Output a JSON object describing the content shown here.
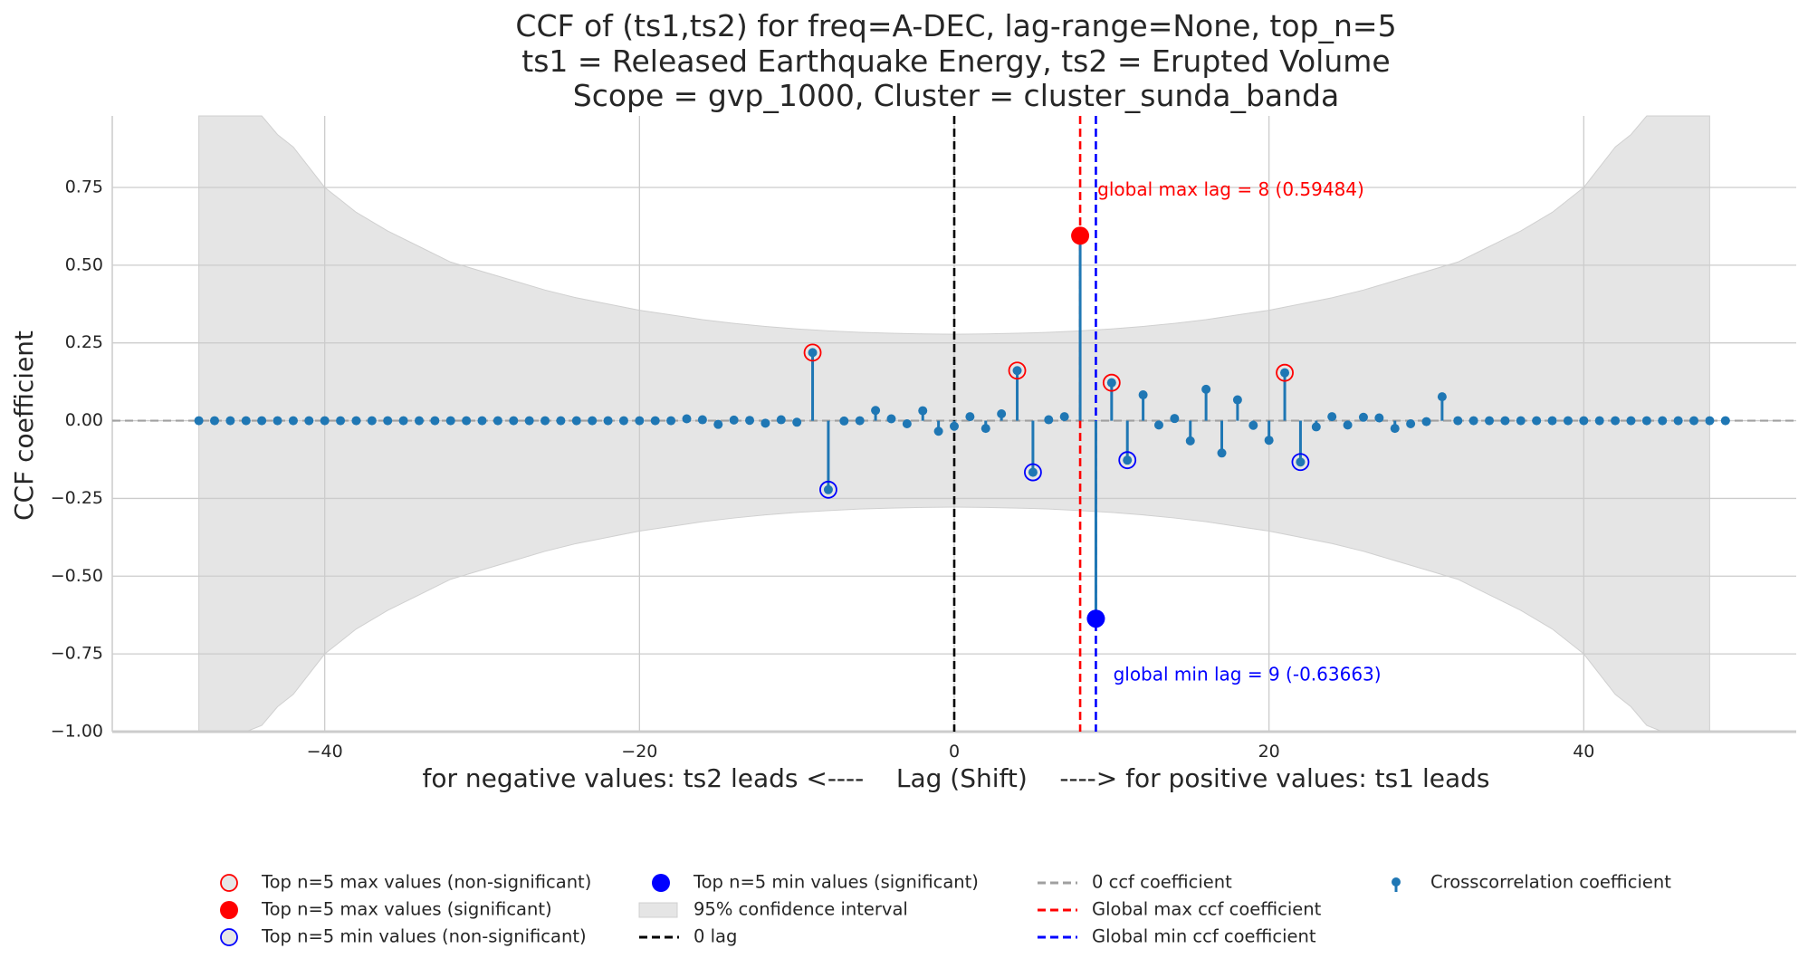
{
  "chart_data": {
    "type": "stem",
    "title_lines": [
      "CCF of (ts1,ts2) for freq=A-DEC, lag-range=None, top_n=5",
      "ts1 = Released Earthquake Energy, ts2 = Erupted Volume",
      "Scope = gvp_1000, Cluster = cluster_sunda_banda"
    ],
    "xlabel": "for negative values: ts2 leads <----    Lag (Shift)    ----> for positive values: ts1 leads",
    "ylabel": "CCF coefficient",
    "xlim": [
      -53.5,
      53.5
    ],
    "ylim": [
      -1.0,
      0.98
    ],
    "xticks": [
      -40,
      -20,
      0,
      20,
      40
    ],
    "xtick_labels": [
      "−40",
      "−20",
      "0",
      "20",
      "40"
    ],
    "yticks": [
      -1.0,
      -0.75,
      -0.5,
      -0.25,
      0.0,
      0.25,
      0.5,
      0.75
    ],
    "ytick_labels": [
      "−1.00",
      "−0.75",
      "−0.50",
      "−0.25",
      "0.00",
      "0.25",
      "0.50",
      "0.75"
    ],
    "grid": true,
    "lags": [
      -48,
      -47,
      -46,
      -45,
      -44,
      -43,
      -42,
      -41,
      -40,
      -39,
      -38,
      -37,
      -36,
      -35,
      -34,
      -33,
      -32,
      -31,
      -30,
      -29,
      -28,
      -27,
      -26,
      -25,
      -24,
      -23,
      -22,
      -21,
      -20,
      -19,
      -18,
      -17,
      -16,
      -15,
      -14,
      -13,
      -12,
      -11,
      -10,
      -9,
      -8,
      -7,
      -6,
      -5,
      -4,
      -3,
      -2,
      -1,
      0,
      1,
      2,
      3,
      4,
      5,
      6,
      7,
      8,
      9,
      10,
      11,
      12,
      13,
      14,
      15,
      16,
      17,
      18,
      19,
      20,
      21,
      22,
      23,
      24,
      25,
      26,
      27,
      28,
      29,
      30,
      31,
      32,
      33,
      34,
      35,
      36,
      37,
      38,
      39,
      40,
      41,
      42,
      43,
      44,
      45,
      46,
      47,
      48,
      49
    ],
    "ccf": [
      0,
      0,
      0,
      0,
      0,
      0,
      0,
      0,
      0,
      0,
      0,
      0,
      0,
      0,
      0,
      0,
      0,
      0,
      0,
      0,
      0,
      0,
      0,
      0,
      0,
      0,
      0,
      0,
      0,
      0,
      0,
      0.006,
      0.003,
      -0.012,
      0.002,
      0.001,
      -0.008,
      0.003,
      -0.005,
      0.219,
      -0.222,
      -0.001,
      0,
      0.033,
      0.006,
      -0.01,
      0.032,
      -0.034,
      -0.018,
      0.013,
      -0.025,
      0.022,
      0.161,
      -0.166,
      0.003,
      0.013,
      0.59484,
      -0.63663,
      0.122,
      -0.127,
      0.083,
      -0.014,
      0.007,
      -0.065,
      0.101,
      -0.104,
      0.067,
      -0.015,
      -0.063,
      0.154,
      -0.133,
      -0.02,
      0.013,
      -0.014,
      0.011,
      0.009,
      -0.025,
      -0.01,
      -0.003,
      0.077,
      0,
      0,
      0,
      0,
      0,
      0,
      0,
      0,
      0,
      0,
      0,
      0,
      0,
      0,
      0,
      0,
      0,
      0
    ],
    "confidence_interval_95": {
      "lags": [
        -48,
        -47,
        -46,
        -45,
        -44,
        -43,
        -42,
        -40,
        -38,
        -36,
        -34,
        -32,
        -30,
        -28,
        -26,
        -24,
        -22,
        -20,
        -18,
        -16,
        -14,
        -12,
        -10,
        -8,
        -6,
        -4,
        -2,
        0,
        2,
        4,
        6,
        8,
        10,
        12,
        14,
        16,
        18,
        20,
        22,
        24,
        26,
        28,
        30,
        32,
        34,
        36,
        38,
        40,
        42,
        43,
        44,
        45,
        46,
        47,
        48
      ],
      "upper": [
        2.0,
        2.0,
        1.3,
        1.07,
        0.98,
        0.92,
        0.88,
        0.75,
        0.67,
        0.61,
        0.56,
        0.51,
        0.48,
        0.45,
        0.42,
        0.395,
        0.375,
        0.355,
        0.34,
        0.325,
        0.313,
        0.303,
        0.295,
        0.289,
        0.284,
        0.281,
        0.279,
        0.278,
        0.279,
        0.281,
        0.284,
        0.289,
        0.295,
        0.303,
        0.313,
        0.325,
        0.34,
        0.355,
        0.375,
        0.395,
        0.42,
        0.45,
        0.48,
        0.51,
        0.56,
        0.61,
        0.67,
        0.75,
        0.88,
        0.92,
        0.98,
        1.07,
        1.3,
        2.0,
        2.0
      ]
    },
    "top_n_max_non_significant": [
      {
        "x": -9,
        "y": 0.219
      },
      {
        "x": 4,
        "y": 0.161
      },
      {
        "x": 10,
        "y": 0.122
      },
      {
        "x": 21,
        "y": 0.154
      }
    ],
    "top_n_max_significant": [
      {
        "x": 8,
        "y": 0.59484
      }
    ],
    "top_n_min_non_significant": [
      {
        "x": -8,
        "y": -0.222
      },
      {
        "x": 5,
        "y": -0.166
      },
      {
        "x": 11,
        "y": -0.127
      },
      {
        "x": 22,
        "y": -0.133
      }
    ],
    "top_n_min_significant": [
      {
        "x": 9,
        "y": -0.63663
      }
    ],
    "zero_lag": 0,
    "global_max": {
      "lag": 8,
      "value": 0.59484,
      "label": "global max lag = 8 (0.59484)",
      "label_at": {
        "x": 9.1,
        "y": 0.74
      }
    },
    "global_min": {
      "lag": 9,
      "value": -0.63663,
      "label": "global min lag = 9 (-0.63663)",
      "label_at": {
        "x": 10.1,
        "y": -0.82
      }
    },
    "legend_position": "lower center",
    "legend": [
      "Top n=5 max values (non-significant)",
      "Top n=5 max values (significant)",
      "Top n=5 min values (non-significant)",
      "Top n=5 min values (significant)",
      "95% confidence interval",
      "0 lag",
      "0 ccf coefficient",
      "Global max ccf coefficient",
      "Global min ccf coefficient",
      "Crosscorrelation coefficient"
    ],
    "colors": {
      "stem": "#1f77b4",
      "max_marker": "#ff0000",
      "min_marker": "#0000ff",
      "ci_fill": "#e5e5e5",
      "zero_lag_line": "#000000",
      "zero_ccf_line": "#a0a0a0",
      "grid": "#cccccc"
    }
  }
}
